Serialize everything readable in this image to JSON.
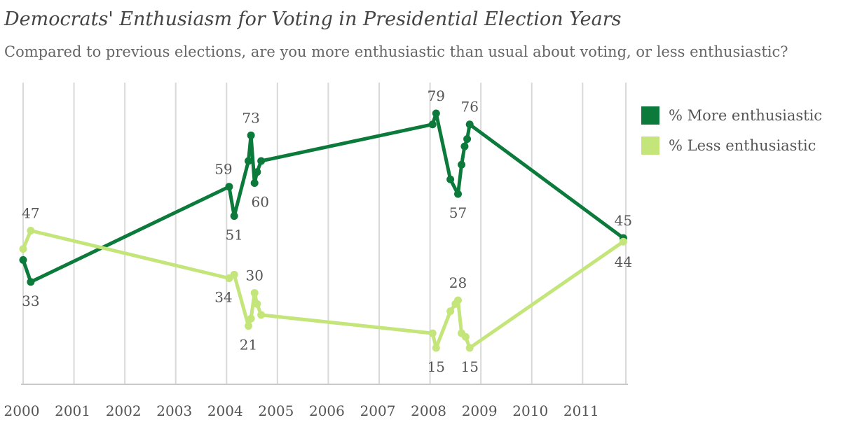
{
  "title": "Democrats' Enthusiasm for Voting in Presidential Election Years",
  "subtitle": "Compared to previous elections, are you more enthusiastic than usual about voting, or less enthusiastic?",
  "legend": [
    {
      "label": "% More enthusiastic",
      "color": "#0b7a3b"
    },
    {
      "label": "% Less enthusiastic",
      "color": "#c3e57a"
    }
  ],
  "chart_data": {
    "type": "line",
    "title": "Democrats' Enthusiasm for Voting in Presidential Election Years",
    "xlabel": "",
    "ylabel": "",
    "x_ticks": [
      "2000",
      "2001",
      "2002",
      "2003",
      "2004",
      "2005",
      "2006",
      "2007",
      "2008",
      "2009",
      "2010",
      "2011"
    ],
    "xlim": [
      2000,
      2011.85
    ],
    "ylim": [
      0,
      100
    ],
    "grid": "vertical",
    "legend_position": "right",
    "series": [
      {
        "name": "% More enthusiastic",
        "color": "#0b7a3b",
        "points": [
          {
            "x": 2000.0,
            "y": 39,
            "label": ""
          },
          {
            "x": 2000.15,
            "y": 33,
            "label": "33"
          },
          {
            "x": 2004.05,
            "y": 59,
            "label": "59"
          },
          {
            "x": 2004.15,
            "y": 51,
            "label": "51"
          },
          {
            "x": 2004.43,
            "y": 66,
            "label": ""
          },
          {
            "x": 2004.48,
            "y": 73,
            "label": "73"
          },
          {
            "x": 2004.55,
            "y": 60,
            "label": "60"
          },
          {
            "x": 2004.6,
            "y": 63,
            "label": ""
          },
          {
            "x": 2004.68,
            "y": 66,
            "label": ""
          },
          {
            "x": 2008.05,
            "y": 76,
            "label": ""
          },
          {
            "x": 2008.12,
            "y": 79,
            "label": "79"
          },
          {
            "x": 2008.4,
            "y": 61,
            "label": ""
          },
          {
            "x": 2008.55,
            "y": 57,
            "label": "57"
          },
          {
            "x": 2008.62,
            "y": 65,
            "label": ""
          },
          {
            "x": 2008.68,
            "y": 70,
            "label": ""
          },
          {
            "x": 2008.73,
            "y": 72,
            "label": ""
          },
          {
            "x": 2008.78,
            "y": 76,
            "label": "76"
          },
          {
            "x": 2011.8,
            "y": 45,
            "label": "45"
          }
        ]
      },
      {
        "name": "% Less enthusiastic",
        "color": "#c3e57a",
        "points": [
          {
            "x": 2000.0,
            "y": 42,
            "label": ""
          },
          {
            "x": 2000.15,
            "y": 47,
            "label": "47"
          },
          {
            "x": 2004.05,
            "y": 34,
            "label": "34"
          },
          {
            "x": 2004.15,
            "y": 35,
            "label": ""
          },
          {
            "x": 2004.43,
            "y": 21,
            "label": "21"
          },
          {
            "x": 2004.48,
            "y": 23,
            "label": ""
          },
          {
            "x": 2004.55,
            "y": 30,
            "label": "30"
          },
          {
            "x": 2004.6,
            "y": 27,
            "label": ""
          },
          {
            "x": 2004.68,
            "y": 24,
            "label": ""
          },
          {
            "x": 2008.05,
            "y": 19,
            "label": ""
          },
          {
            "x": 2008.12,
            "y": 15,
            "label": "15"
          },
          {
            "x": 2008.4,
            "y": 25,
            "label": ""
          },
          {
            "x": 2008.5,
            "y": 27,
            "label": ""
          },
          {
            "x": 2008.55,
            "y": 28,
            "label": "28"
          },
          {
            "x": 2008.62,
            "y": 19,
            "label": ""
          },
          {
            "x": 2008.7,
            "y": 18,
            "label": ""
          },
          {
            "x": 2008.78,
            "y": 15,
            "label": "15"
          },
          {
            "x": 2011.8,
            "y": 44,
            "label": "44"
          }
        ]
      }
    ]
  }
}
